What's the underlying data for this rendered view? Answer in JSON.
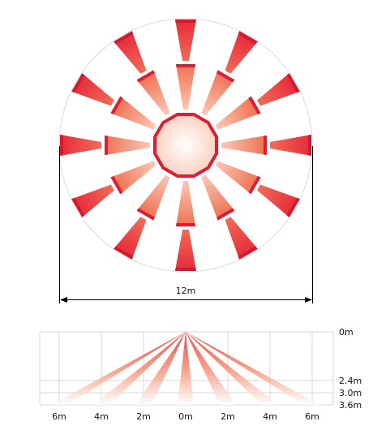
{
  "top_view": {
    "dimension_label": "12m",
    "beam_directions_deg": [
      0,
      30,
      60,
      90,
      120,
      150,
      180,
      210,
      240,
      270,
      300,
      330
    ],
    "beam_color_inner": "#fff4ee",
    "beam_color_outer": "#e8283a"
  },
  "side_view": {
    "x_tick_labels": [
      "6m",
      "4m",
      "2m",
      "0m",
      "2m",
      "4m",
      "6m"
    ],
    "x_tick_values_m": [
      -6,
      -4,
      -2,
      0,
      2,
      4,
      6
    ],
    "height_labels": [
      "0m",
      "2.4m",
      "3.0m",
      "3.6m"
    ],
    "height_values_m": [
      0,
      2.4,
      3.0,
      3.6
    ],
    "beam_endpoints_m": [
      -6,
      -4,
      -2,
      0,
      2,
      4,
      6
    ],
    "beam_color": "#e0352e"
  }
}
